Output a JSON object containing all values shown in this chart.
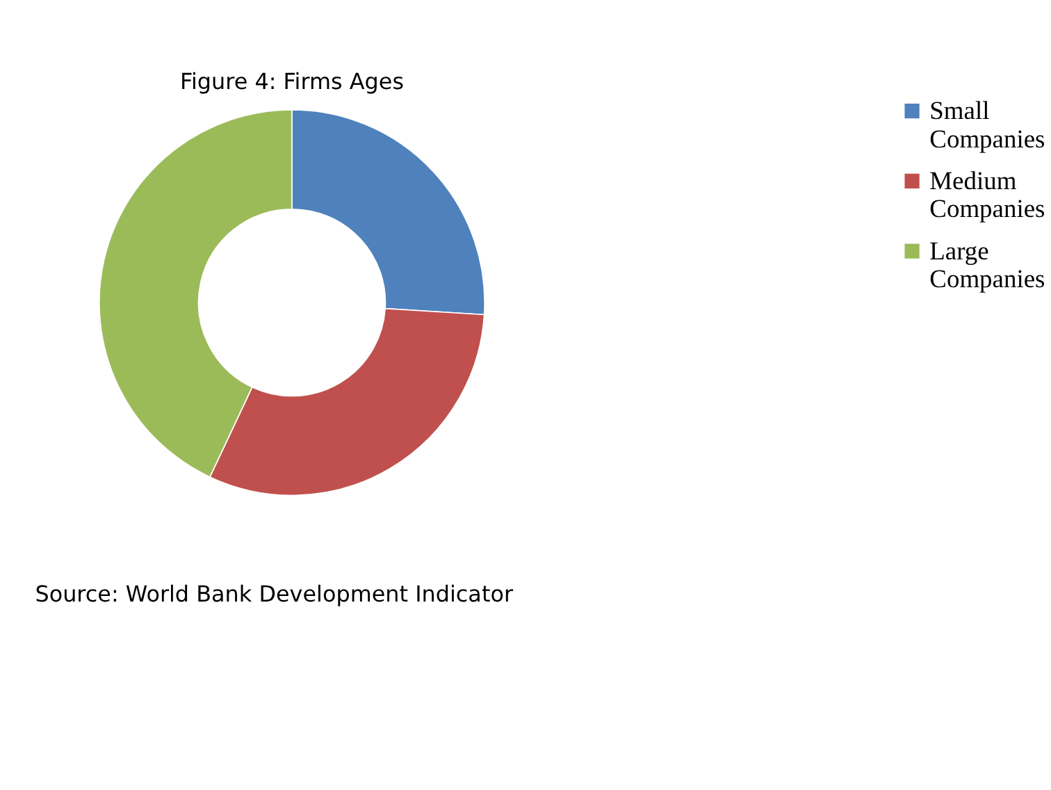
{
  "chart_data": {
    "type": "donut",
    "title": "Figure 4:  Firms Ages",
    "categories": [
      "Small Companies",
      "Medium Companies",
      "Large Companies"
    ],
    "values": [
      26,
      31,
      43
    ],
    "colors": [
      "#4f81bd",
      "#c0504d",
      "#9bbb59"
    ],
    "legend": "right",
    "annotations": [
      "Source: World Bank Development Indicator"
    ]
  }
}
